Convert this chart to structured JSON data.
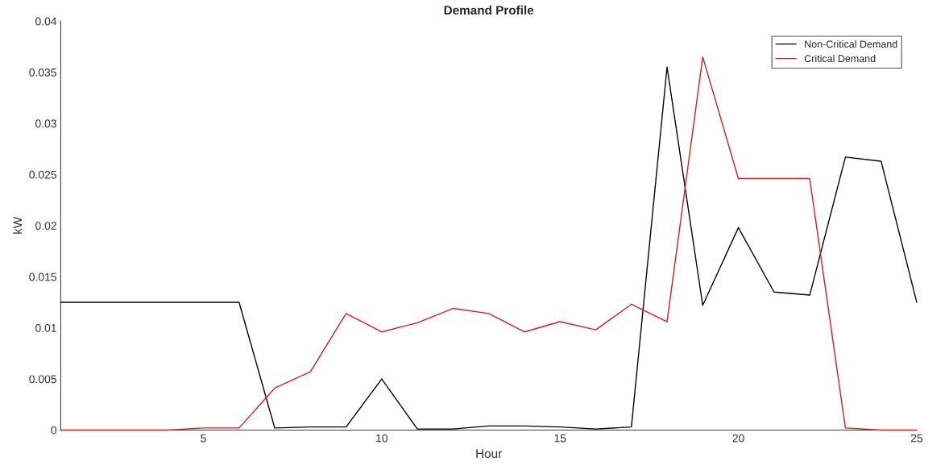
{
  "chart_data": {
    "type": "line",
    "title": "Demand Profile",
    "xlabel": "Hour",
    "ylabel": "kW",
    "x": [
      1,
      2,
      3,
      4,
      5,
      6,
      7,
      8,
      9,
      10,
      11,
      12,
      13,
      14,
      15,
      16,
      17,
      18,
      19,
      20,
      21,
      22,
      23,
      24,
      25
    ],
    "series": [
      {
        "name": "Non-Critical Demand",
        "color": "#000000",
        "values": [
          0.0125,
          0.0125,
          0.0125,
          0.0125,
          0.0125,
          0.0125,
          0.0002,
          0.0003,
          0.0003,
          0.005,
          0.0001,
          0.0001,
          0.0004,
          0.0004,
          0.0003,
          0.0001,
          0.0003,
          0.0355,
          0.0122,
          0.0198,
          0.0135,
          0.0132,
          0.0267,
          0.0263,
          0.0125
        ]
      },
      {
        "name": "Critical Demand",
        "color": "#e0191b",
        "values": [
          0,
          0,
          0,
          0,
          0.0002,
          0.0002,
          0.0041,
          0.0057,
          0.0114,
          0.0096,
          0.0105,
          0.0119,
          0.0114,
          0.0096,
          0.0106,
          0.0098,
          0.0123,
          0.0106,
          0.0365,
          0.0246,
          0.0246,
          0.0246,
          0.0002,
          0,
          0
        ]
      }
    ],
    "xlim": [
      1,
      25
    ],
    "xticks": [
      5,
      10,
      15,
      20,
      25
    ],
    "ylim": [
      0,
      0.04
    ],
    "yticks": [
      0,
      0.005,
      0.01,
      0.015,
      0.02,
      0.025,
      0.03,
      0.035,
      0.04
    ],
    "grid": false,
    "legend": "top right",
    "marker": "none",
    "line_style": "solid"
  }
}
